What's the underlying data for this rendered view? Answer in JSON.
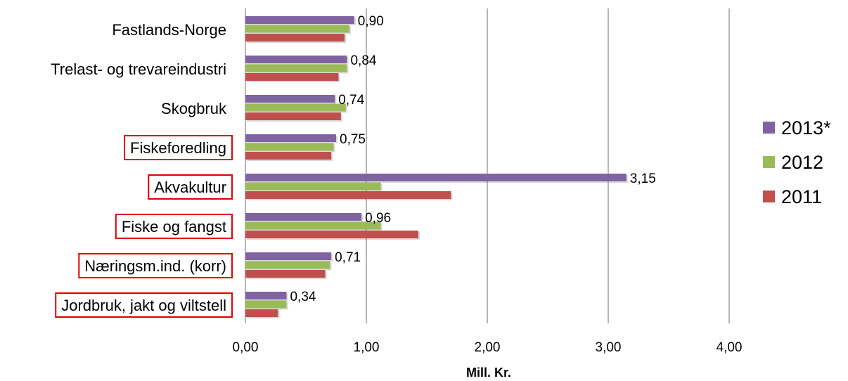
{
  "chart_data": {
    "type": "bar",
    "orientation": "horizontal",
    "categories": [
      "Fastlands-Norge",
      "Trelast- og trevareindustri",
      "Skogbruk",
      "Fiskeforedling",
      "Akvakultur",
      "Fiske og fangst",
      "Næringsm.ind. (korr)",
      "Jordbruk, jakt og viltstell"
    ],
    "highlighted_categories": [
      "Fiskeforedling",
      "Akvakultur",
      "Fiske og fangst",
      "Næringsm.ind. (korr)",
      "Jordbruk, jakt og viltstell"
    ],
    "series": [
      {
        "name": "2013*",
        "color": "#8064A2",
        "values": [
          0.9,
          0.84,
          0.74,
          0.75,
          3.15,
          0.96,
          0.71,
          0.34
        ]
      },
      {
        "name": "2012",
        "color": "#9BBB59",
        "values": [
          0.86,
          0.84,
          0.83,
          0.73,
          1.12,
          1.12,
          0.7,
          0.34
        ]
      },
      {
        "name": "2011",
        "color": "#C0504D",
        "values": [
          0.82,
          0.77,
          0.79,
          0.71,
          1.7,
          1.43,
          0.66,
          0.27
        ]
      }
    ],
    "data_labels": [
      "0,90",
      "0,84",
      "0,74",
      "0,75",
      "3,15",
      "0,96",
      "0,71",
      "0,34"
    ],
    "xlabel": "Mill. Kr.",
    "ylabel": "",
    "title": "",
    "xlim": [
      0,
      4
    ],
    "x_ticks": [
      0,
      1,
      2,
      3,
      4
    ],
    "x_tick_labels": [
      "0,00",
      "1,00",
      "2,00",
      "3,00",
      "4,00"
    ],
    "grid": "vertical",
    "legend_position": "right"
  },
  "highlight_color": "#E00000",
  "gridline_color": "#868686"
}
